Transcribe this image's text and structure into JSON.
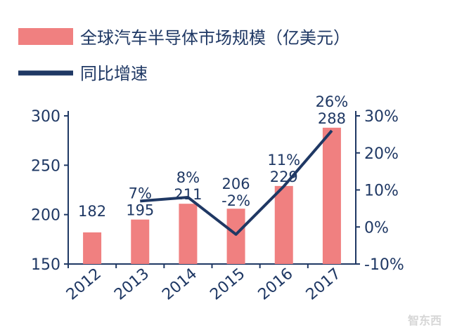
{
  "chart_data": {
    "type": "bar",
    "categories": [
      "2012",
      "2013",
      "2014",
      "2015",
      "2016",
      "2017"
    ],
    "series": [
      {
        "name": "全球汽车半导体市场规模（亿美元）",
        "type": "bar",
        "axis": "left",
        "values": [
          182,
          195,
          211,
          206,
          229,
          288
        ],
        "data_labels": [
          "182",
          "195",
          "211",
          "206",
          "229",
          "288"
        ],
        "color": "#f08080"
      },
      {
        "name": "同比增速",
        "type": "line",
        "axis": "right",
        "values": [
          null,
          7,
          8,
          -2,
          11,
          26
        ],
        "data_labels": [
          "",
          "7%",
          "8%",
          "-2%",
          "11%",
          "26%"
        ],
        "color": "#1f3864"
      }
    ],
    "ylim": [
      150,
      300
    ],
    "y_ticks": [
      "150",
      "200",
      "250",
      "300"
    ],
    "y2lim": [
      -10,
      30
    ],
    "y2_ticks": [
      "-10%",
      "0%",
      "10%",
      "20%",
      "30%"
    ],
    "legend_position": "top-left",
    "grid": false
  },
  "watermark": "智东西",
  "colors": {
    "axis": "#1f3864",
    "bar": "#f08080",
    "line": "#1f3864"
  }
}
